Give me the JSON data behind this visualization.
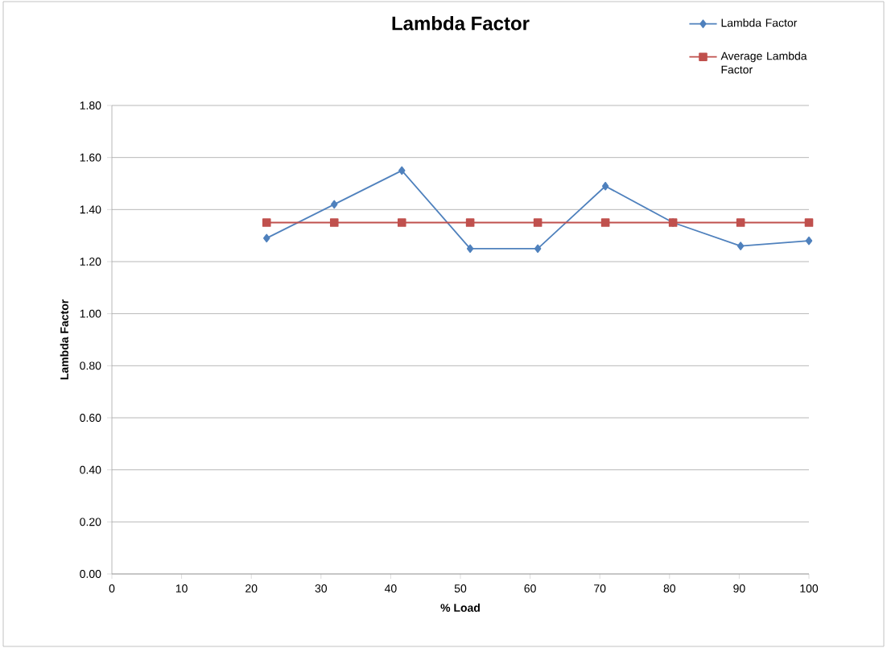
{
  "chart_data": {
    "type": "line",
    "title": "Lambda Factor",
    "xlabel": "% Load",
    "ylabel": "Lambda Factor",
    "series": [
      {
        "name": "Lambda Factor",
        "color": "#4f81bd",
        "marker": "diamond",
        "x": [
          22.2,
          31.9,
          41.6,
          51.4,
          61.1,
          70.8,
          80.5,
          90.2,
          100
        ],
        "values": [
          1.29,
          1.42,
          1.55,
          1.25,
          1.25,
          1.49,
          1.35,
          1.26,
          1.28
        ]
      },
      {
        "name": "Average Lambda Factor",
        "color": "#c0504d",
        "marker": "square",
        "x": [
          22.2,
          31.9,
          41.6,
          51.4,
          61.1,
          70.8,
          80.5,
          90.2,
          100
        ],
        "values": [
          1.35,
          1.35,
          1.35,
          1.35,
          1.35,
          1.35,
          1.35,
          1.35,
          1.35
        ]
      }
    ],
    "xlim": [
      0,
      100
    ],
    "xticks": [
      0,
      10,
      20,
      30,
      40,
      50,
      60,
      70,
      80,
      90,
      100
    ],
    "ylim": [
      0,
      1.8
    ],
    "yticks": [
      {
        "value": 0,
        "label": "0.00"
      },
      {
        "value": 0.2,
        "label": "0.20"
      },
      {
        "value": 0.4,
        "label": "0.40"
      },
      {
        "value": 0.6,
        "label": "0.60"
      },
      {
        "value": 0.8,
        "label": "0.80"
      },
      {
        "value": 1.0,
        "label": "1.00"
      },
      {
        "value": 1.2,
        "label": "1.20"
      },
      {
        "value": 1.4,
        "label": "1.40"
      },
      {
        "value": 1.6,
        "label": "1.60"
      },
      {
        "value": 1.8,
        "label": "1.80"
      }
    ],
    "grid": "y",
    "legend": "top right",
    "line_style": "solid"
  }
}
